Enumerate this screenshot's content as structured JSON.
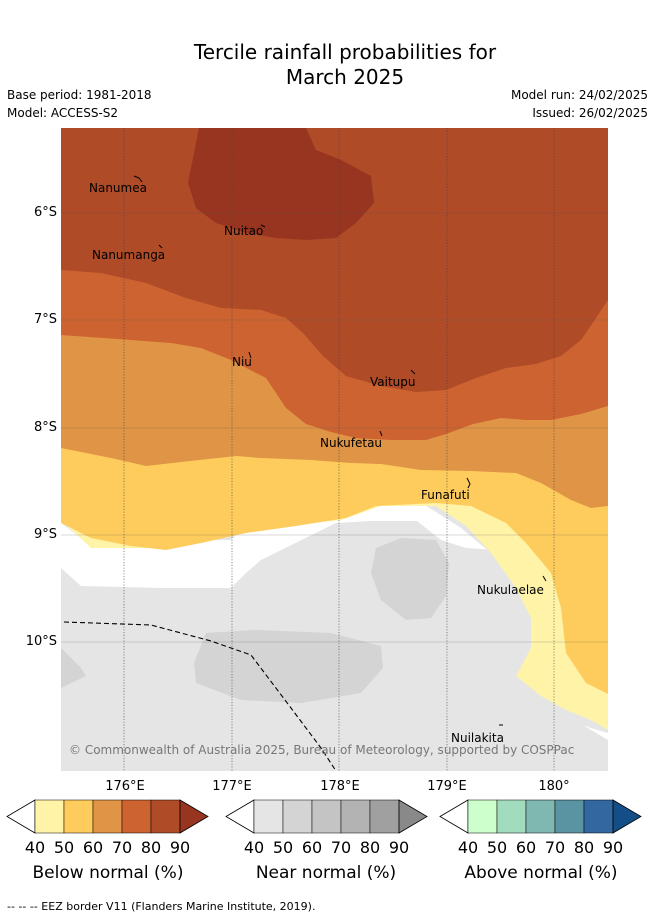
{
  "title_line1": "Tercile rainfall probabilities for",
  "title_line2": "March 2025",
  "base_period": "Base period: 1981-2018",
  "model": "Model: ACCESS-S2",
  "model_run": "Model run: 24/02/2025",
  "issued": "Issued: 26/02/2025",
  "lat_labels": [
    "6°S",
    "7°S",
    "8°S",
    "9°S",
    "10°S"
  ],
  "lon_labels": [
    "176°E",
    "177°E",
    "178°E",
    "179°E",
    "180°"
  ],
  "places": [
    "Nanumea",
    "Nuitao",
    "Nanumanga",
    "Niu",
    "Vaitupu",
    "Nukufetau",
    "Funafuti",
    "Nukulaelae",
    "Nuilakita"
  ],
  "copyright": "© Commonwealth of Australia 2025, Bureau of Meteorology, supported by COSPPac",
  "colorbars": [
    {
      "title": "Below normal (%)",
      "ticks": [
        "40",
        "50",
        "60",
        "70",
        "80",
        "90"
      ],
      "colors": [
        "#fff3a8",
        "#fecc5c",
        "#e09446",
        "#cc6330",
        "#b04b27",
        "#983520"
      ]
    },
    {
      "title": "Near normal (%)",
      "ticks": [
        "40",
        "50",
        "60",
        "70",
        "80",
        "90"
      ],
      "colors": [
        "#e5e5e5",
        "#d4d4d4",
        "#c4c4c4",
        "#b3b3b3",
        "#a0a0a0",
        "#898989"
      ]
    },
    {
      "title": "Above normal (%)",
      "ticks": [
        "40",
        "50",
        "60",
        "70",
        "80",
        "90"
      ],
      "colors": [
        "#ccffcc",
        "#a2dcbe",
        "#7fb7b1",
        "#5a93a2",
        "#33679f",
        "#144e87"
      ]
    }
  ],
  "footer": "--  --  -- EEZ border V11 (Flanders Marine Institute, 2019)."
}
